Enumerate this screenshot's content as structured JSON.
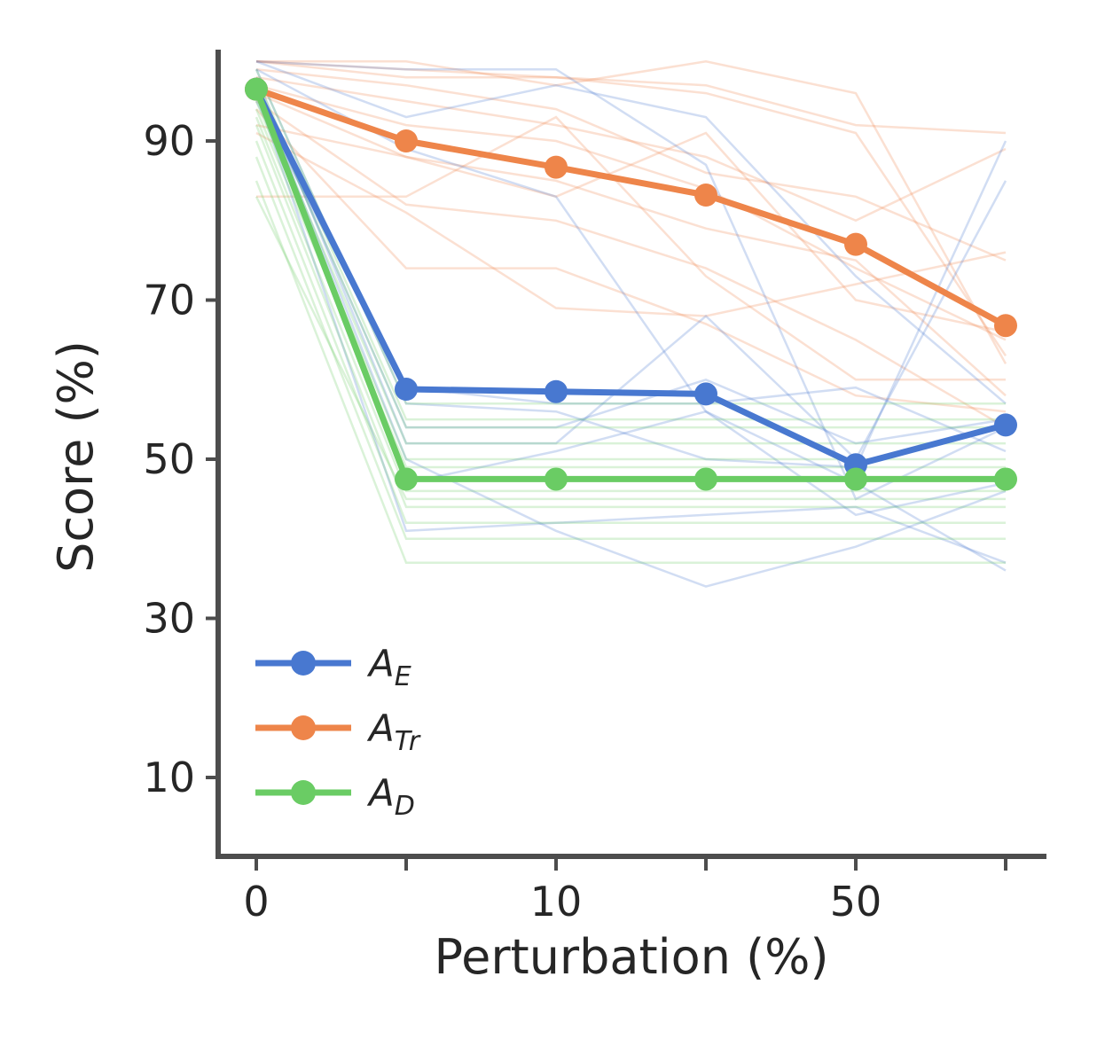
{
  "chart_data": {
    "type": "line",
    "xlabel": "Perturbation (%)",
    "ylabel": "Score (%)",
    "x_positions": [
      0,
      1,
      2,
      3,
      4,
      5
    ],
    "x_tick_labels": [
      "0",
      "",
      "10",
      "",
      "50",
      ""
    ],
    "y_ticks": [
      10,
      30,
      50,
      70,
      90
    ],
    "ylim": [
      0,
      101
    ],
    "legend_position": "lower-left",
    "grid": false,
    "series": [
      {
        "name": "A",
        "name_sub": "E",
        "color": "#4878d0",
        "values": [
          96.5,
          58.8,
          58.5,
          58.2,
          49.3,
          54.3
        ]
      },
      {
        "name": "A",
        "name_sub": "Tr",
        "color": "#ee854a",
        "values": [
          96.5,
          90.0,
          86.7,
          83.2,
          77.0,
          66.8
        ]
      },
      {
        "name": "A",
        "name_sub": "D",
        "color": "#6acc64",
        "values": [
          96.5,
          47.5,
          47.5,
          47.5,
          47.5,
          47.5
        ]
      }
    ],
    "background_runs": {
      "blue": [
        [
          100,
          93,
          97,
          93,
          73,
          57
        ],
        [
          99,
          57,
          56,
          50,
          49,
          90
        ],
        [
          98,
          52,
          52,
          68,
          50,
          85
        ],
        [
          97,
          50,
          41,
          34,
          39,
          46
        ],
        [
          96,
          41,
          42,
          43,
          44,
          37
        ],
        [
          95,
          59,
          57,
          57,
          59,
          51
        ],
        [
          100,
          99,
          99,
          87,
          45,
          54
        ],
        [
          99,
          89,
          83,
          56,
          43,
          47
        ],
        [
          97,
          54,
          54,
          60,
          52,
          55
        ],
        [
          96,
          47,
          51,
          56,
          47,
          36
        ]
      ],
      "orange": [
        [
          100,
          100,
          97,
          100,
          96,
          62
        ],
        [
          100,
          99,
          98,
          97,
          92,
          91
        ],
        [
          99,
          97,
          94,
          86,
          83,
          75
        ],
        [
          98,
          95,
          92,
          88,
          80,
          89
        ],
        [
          97,
          92,
          90,
          84,
          74,
          65
        ],
        [
          96,
          88,
          85,
          79,
          75,
          58
        ],
        [
          95,
          82,
          80,
          74,
          65,
          54
        ],
        [
          94,
          74,
          74,
          67,
          58,
          56
        ],
        [
          92,
          88,
          83,
          91,
          70,
          66
        ],
        [
          91,
          81,
          69,
          68,
          72,
          76
        ],
        [
          83,
          83,
          93,
          73,
          60,
          60
        ],
        [
          100,
          98,
          98,
          96,
          91,
          63
        ]
      ],
      "green": [
        [
          99,
          57,
          57,
          57,
          57,
          57
        ],
        [
          98,
          55,
          55,
          55,
          55,
          55
        ],
        [
          97,
          54,
          54,
          54,
          54,
          54
        ],
        [
          96,
          52,
          52,
          52,
          52,
          52
        ],
        [
          95,
          50,
          50,
          50,
          50,
          50
        ],
        [
          94,
          49,
          49,
          49,
          49,
          49
        ],
        [
          93,
          46,
          46,
          46,
          46,
          46
        ],
        [
          92,
          44,
          44,
          44,
          44,
          44
        ],
        [
          90,
          42,
          42,
          42,
          42,
          42
        ],
        [
          88,
          40,
          40,
          40,
          40,
          40
        ],
        [
          85,
          37,
          37,
          37,
          37,
          37
        ],
        [
          83,
          45,
          45,
          45,
          45,
          45
        ]
      ]
    }
  }
}
